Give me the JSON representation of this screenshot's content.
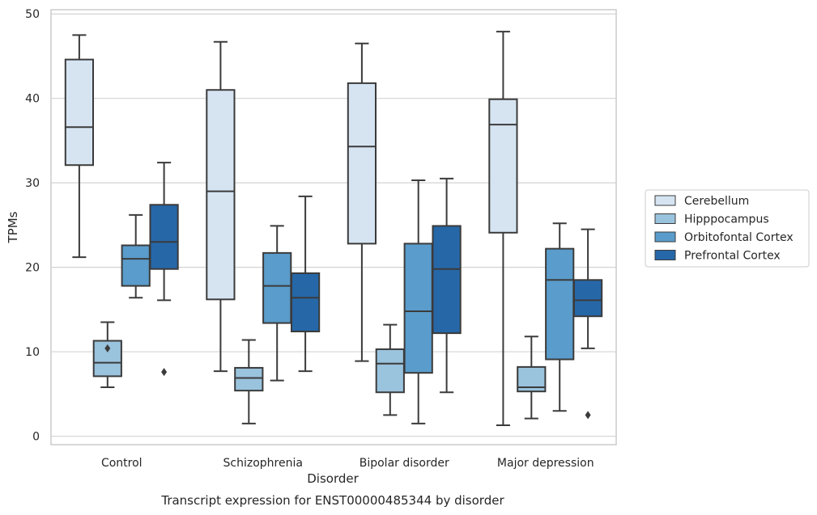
{
  "chart_data": {
    "type": "box",
    "title": "",
    "caption": "Transcript expression for ENST00000485344 by disorder",
    "xlabel": "Disorder",
    "ylabel": "TPMs",
    "ylim": [
      -1,
      50.5
    ],
    "yticks": [
      0,
      10,
      20,
      30,
      40,
      50
    ],
    "grid": "horizontal",
    "legend_position": "right-outside",
    "categories": [
      "Control",
      "Schizophrenia",
      "Bipolar disorder",
      "Major depression"
    ],
    "series": [
      {
        "name": "Cerebellum",
        "color": "#d6e4f2",
        "boxes": [
          {
            "whisker_low": 21.2,
            "q1": 32.1,
            "median": 36.6,
            "q3": 44.6,
            "whisker_high": 47.5,
            "outliers": []
          },
          {
            "whisker_low": 7.7,
            "q1": 16.2,
            "median": 29.0,
            "q3": 41.0,
            "whisker_high": 46.7,
            "outliers": []
          },
          {
            "whisker_low": 8.9,
            "q1": 22.8,
            "median": 34.3,
            "q3": 41.8,
            "whisker_high": 46.5,
            "outliers": []
          },
          {
            "whisker_low": 1.3,
            "q1": 24.1,
            "median": 36.9,
            "q3": 39.9,
            "whisker_high": 47.9,
            "outliers": []
          }
        ]
      },
      {
        "name": "Hipppocampus",
        "color": "#9ac3dd",
        "boxes": [
          {
            "whisker_low": 5.8,
            "q1": 7.1,
            "median": 8.7,
            "q3": 11.3,
            "whisker_high": 13.5,
            "outliers": [
              10.4
            ]
          },
          {
            "whisker_low": 1.5,
            "q1": 5.4,
            "median": 6.9,
            "q3": 8.1,
            "whisker_high": 11.4,
            "outliers": []
          },
          {
            "whisker_low": 2.5,
            "q1": 5.2,
            "median": 8.6,
            "q3": 10.3,
            "whisker_high": 13.2,
            "outliers": []
          },
          {
            "whisker_low": 2.1,
            "q1": 5.3,
            "median": 5.8,
            "q3": 8.2,
            "whisker_high": 11.8,
            "outliers": []
          }
        ]
      },
      {
        "name": "Orbitofontal Cortex",
        "color": "#5a9ccb",
        "boxes": [
          {
            "whisker_low": 16.4,
            "q1": 17.8,
            "median": 21.0,
            "q3": 22.6,
            "whisker_high": 26.2,
            "outliers": []
          },
          {
            "whisker_low": 6.6,
            "q1": 13.4,
            "median": 17.8,
            "q3": 21.7,
            "whisker_high": 24.9,
            "outliers": []
          },
          {
            "whisker_low": 1.5,
            "q1": 7.5,
            "median": 14.8,
            "q3": 22.8,
            "whisker_high": 30.3,
            "outliers": []
          },
          {
            "whisker_low": 3.0,
            "q1": 9.1,
            "median": 18.5,
            "q3": 22.2,
            "whisker_high": 25.2,
            "outliers": []
          }
        ]
      },
      {
        "name": "Prefrontal Cortex",
        "color": "#2667a8",
        "boxes": [
          {
            "whisker_low": 16.1,
            "q1": 19.8,
            "median": 23.0,
            "q3": 27.4,
            "whisker_high": 32.4,
            "outliers": [
              7.6
            ]
          },
          {
            "whisker_low": 7.7,
            "q1": 12.4,
            "median": 16.4,
            "q3": 19.3,
            "whisker_high": 28.4,
            "outliers": []
          },
          {
            "whisker_low": 5.2,
            "q1": 12.2,
            "median": 19.8,
            "q3": 24.9,
            "whisker_high": 30.5,
            "outliers": []
          },
          {
            "whisker_low": 10.4,
            "q1": 14.2,
            "median": 16.1,
            "q3": 18.5,
            "whisker_high": 24.5,
            "outliers": [
              2.5
            ]
          }
        ]
      }
    ]
  }
}
